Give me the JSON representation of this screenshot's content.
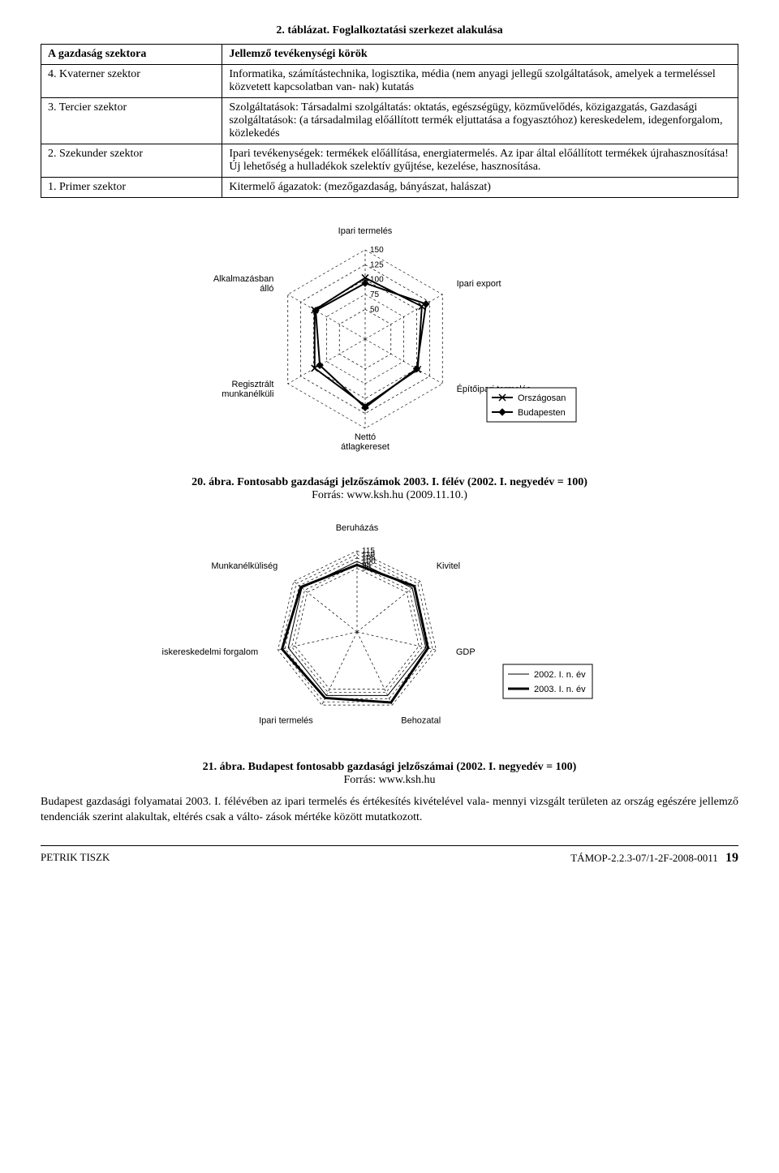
{
  "tableTitle": "2. táblázat. Foglalkoztatási szerkezet alakulása",
  "tableHeader": {
    "col1": "A gazdaság szektora",
    "col2": "Jellemző tevékenységi körök"
  },
  "rows": [
    {
      "sector": "4. Kvaterner szektor",
      "desc": "Informatika, számítástechnika, logisztika, média (nem anyagi jellegű szolgáltatások, amelyek a termeléssel közvetett kapcsolatban van-\nnak) kutatás"
    },
    {
      "sector": "3. Tercier szektor",
      "desc": "Szolgáltatások:\nTársadalmi szolgáltatás: oktatás, egészségügy, közművelődés, közigazgatás,\nGazdasági szolgáltatások: (a társadalmilag előállított termék eljuttatása a fogyasztóhoz) kereskedelem, idegenforgalom, közlekedés"
    },
    {
      "sector": "2. Szekunder szektor",
      "desc": "Ipari tevékenységek: termékek előállítása, energiatermelés.\nAz ipar által előállított termékek újrahasznosítása!\nÚj lehetőség a hulladékok szelektív gyűjtése, kezelése, hasznosítása."
    },
    {
      "sector": "1. Primer szektor",
      "desc": "Kitermelő ágazatok: (mezőgazdaság, bányászat, halászat)"
    }
  ],
  "chart1": {
    "type": "radar",
    "axes": [
      "Ipari termelés",
      "Ipari export",
      "Építőipari termelés",
      "Nettó\nátlagkereset",
      "Regisztrált\nmunkanélküli",
      "Alkalmazásban\nálló"
    ],
    "ticks": [
      50,
      75,
      100,
      125,
      150
    ],
    "tick_label_axis": 0,
    "rmax": 150,
    "series": [
      {
        "name": "Országosan",
        "marker": "x",
        "stroke": "#000",
        "stroke_width": 2,
        "values": [
          103,
          110,
          102,
          112,
          98,
          98
        ]
      },
      {
        "name": "Budapesten",
        "marker": "diamond",
        "stroke": "#000",
        "stroke_width": 2,
        "values": [
          94,
          118,
          100,
          115,
          88,
          96
        ]
      }
    ],
    "legend_pos": "right",
    "caption": "20. ábra. Fontosabb gazdasági jelzőszámok 2003. I. félév (2002. I. negyedév = 100)",
    "source": "Forrás: www.ksh.hu (2009.11.10.)",
    "grid_color": "#000",
    "grid_dash": "3 3",
    "background_color": "#ffffff",
    "label_fontsize": 11,
    "tick_fontsize": 10
  },
  "chart2": {
    "type": "radar",
    "axes": [
      "Beruházás",
      "Kivitel",
      "GDP",
      "Behozatal",
      "Ipari termelés",
      "Kiskereskedelmi forgalom",
      "Munkanélküliség"
    ],
    "ticks": [
      90,
      95,
      100,
      105,
      110,
      115
    ],
    "tick_label_axis": 0,
    "rmax": 115,
    "series": [
      {
        "name": "2002. I. n. év",
        "marker": "none",
        "stroke": "#000",
        "stroke_width": 1,
        "values": [
          100,
          100,
          100,
          100,
          100,
          100,
          100
        ]
      },
      {
        "name": "2003. I. n. év",
        "marker": "none",
        "stroke": "#000",
        "stroke_width": 3,
        "values": [
          95,
          104,
          103,
          111,
          104,
          109,
          102
        ]
      }
    ],
    "legend_pos": "right",
    "caption": "21. ábra. Budapest fontosabb gazdasági jelzőszámai (2002. I. negyedév = 100)",
    "source": "Forrás: www.ksh.hu",
    "grid_color": "#000",
    "grid_dash": "3 3",
    "background_color": "#ffffff",
    "label_fontsize": 11,
    "tick_fontsize": 10
  },
  "bodyText": "Budapest gazdasági folyamatai 2003. I. félévében az ipari termelés és értékesítés kivételével vala-\nmennyi vizsgált területen az ország egészére jellemző tendenciák szerint alakultak, eltérés csak a válto-\nzások mértéke között mutatkozott.",
  "footer": {
    "left": "PETRIK TISZK",
    "rightLabel": "TÁMOP-2.2.3-07/1-2F-2008-0011",
    "page": "19"
  }
}
